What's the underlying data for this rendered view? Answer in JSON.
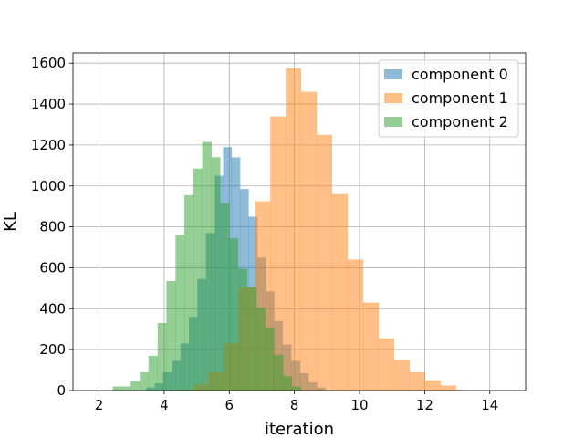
{
  "chart_data": {
    "type": "histogram",
    "xlabel": "iteration",
    "ylabel": "KL",
    "xlim": [
      1.2,
      15.1
    ],
    "ylim": [
      0,
      1650
    ],
    "xticks": [
      2,
      4,
      6,
      8,
      10,
      12,
      14
    ],
    "yticks": [
      0,
      200,
      400,
      600,
      800,
      1000,
      1200,
      1400,
      1600
    ],
    "grid": true,
    "legend_position": "top-right",
    "series": [
      {
        "name": "component 0",
        "color": "#1f77b4",
        "alpha": 0.5,
        "bins": [
          [
            3.45,
            3.71,
            15
          ],
          [
            3.71,
            3.97,
            35
          ],
          [
            3.97,
            4.24,
            90
          ],
          [
            4.24,
            4.5,
            145
          ],
          [
            4.5,
            4.76,
            230
          ],
          [
            4.76,
            5.02,
            360
          ],
          [
            5.02,
            5.28,
            545
          ],
          [
            5.28,
            5.55,
            770
          ],
          [
            5.55,
            5.81,
            1050
          ],
          [
            5.81,
            6.07,
            1190
          ],
          [
            6.07,
            6.33,
            1140
          ],
          [
            6.33,
            6.59,
            985
          ],
          [
            6.59,
            6.86,
            850
          ],
          [
            6.86,
            7.12,
            650
          ],
          [
            7.12,
            7.38,
            485
          ],
          [
            7.38,
            7.64,
            340
          ],
          [
            7.64,
            7.9,
            225
          ],
          [
            7.9,
            8.17,
            145
          ],
          [
            8.17,
            8.43,
            85
          ],
          [
            8.43,
            8.69,
            40
          ],
          [
            8.69,
            8.95,
            15
          ]
        ]
      },
      {
        "name": "component 1",
        "color": "#ff7f0e",
        "alpha": 0.5,
        "bins": [
          [
            4.4,
            4.88,
            5
          ],
          [
            4.88,
            5.35,
            30
          ],
          [
            5.35,
            5.83,
            90
          ],
          [
            5.83,
            6.3,
            230
          ],
          [
            6.3,
            6.78,
            505
          ],
          [
            6.78,
            7.26,
            925
          ],
          [
            7.26,
            7.73,
            1340
          ],
          [
            7.73,
            8.2,
            1575
          ],
          [
            8.2,
            8.68,
            1460
          ],
          [
            8.68,
            9.15,
            1250
          ],
          [
            9.15,
            9.63,
            960
          ],
          [
            9.63,
            10.11,
            640
          ],
          [
            10.11,
            10.58,
            430
          ],
          [
            10.58,
            11.06,
            255
          ],
          [
            11.06,
            11.53,
            150
          ],
          [
            11.53,
            12.01,
            90
          ],
          [
            12.01,
            12.48,
            50
          ],
          [
            12.48,
            12.96,
            25
          ],
          [
            12.96,
            13.15,
            5
          ]
        ]
      },
      {
        "name": "component 2",
        "color": "#2ca02c",
        "alpha": 0.5,
        "bins": [
          [
            2.42,
            2.7,
            20
          ],
          [
            2.7,
            2.97,
            20
          ],
          [
            2.97,
            3.25,
            45
          ],
          [
            3.25,
            3.52,
            90
          ],
          [
            3.52,
            3.8,
            170
          ],
          [
            3.8,
            4.07,
            330
          ],
          [
            4.07,
            4.35,
            535
          ],
          [
            4.35,
            4.62,
            760
          ],
          [
            4.62,
            4.9,
            955
          ],
          [
            4.9,
            5.17,
            1085
          ],
          [
            5.17,
            5.45,
            1215
          ],
          [
            5.45,
            5.72,
            1140
          ],
          [
            5.72,
            6.0,
            915
          ],
          [
            6.0,
            6.27,
            745
          ],
          [
            6.27,
            6.55,
            595
          ],
          [
            6.55,
            6.82,
            505
          ],
          [
            6.82,
            7.1,
            405
          ],
          [
            7.1,
            7.37,
            305
          ],
          [
            7.37,
            7.65,
            175
          ],
          [
            7.65,
            7.92,
            70
          ],
          [
            7.92,
            8.2,
            20
          ]
        ]
      }
    ]
  }
}
